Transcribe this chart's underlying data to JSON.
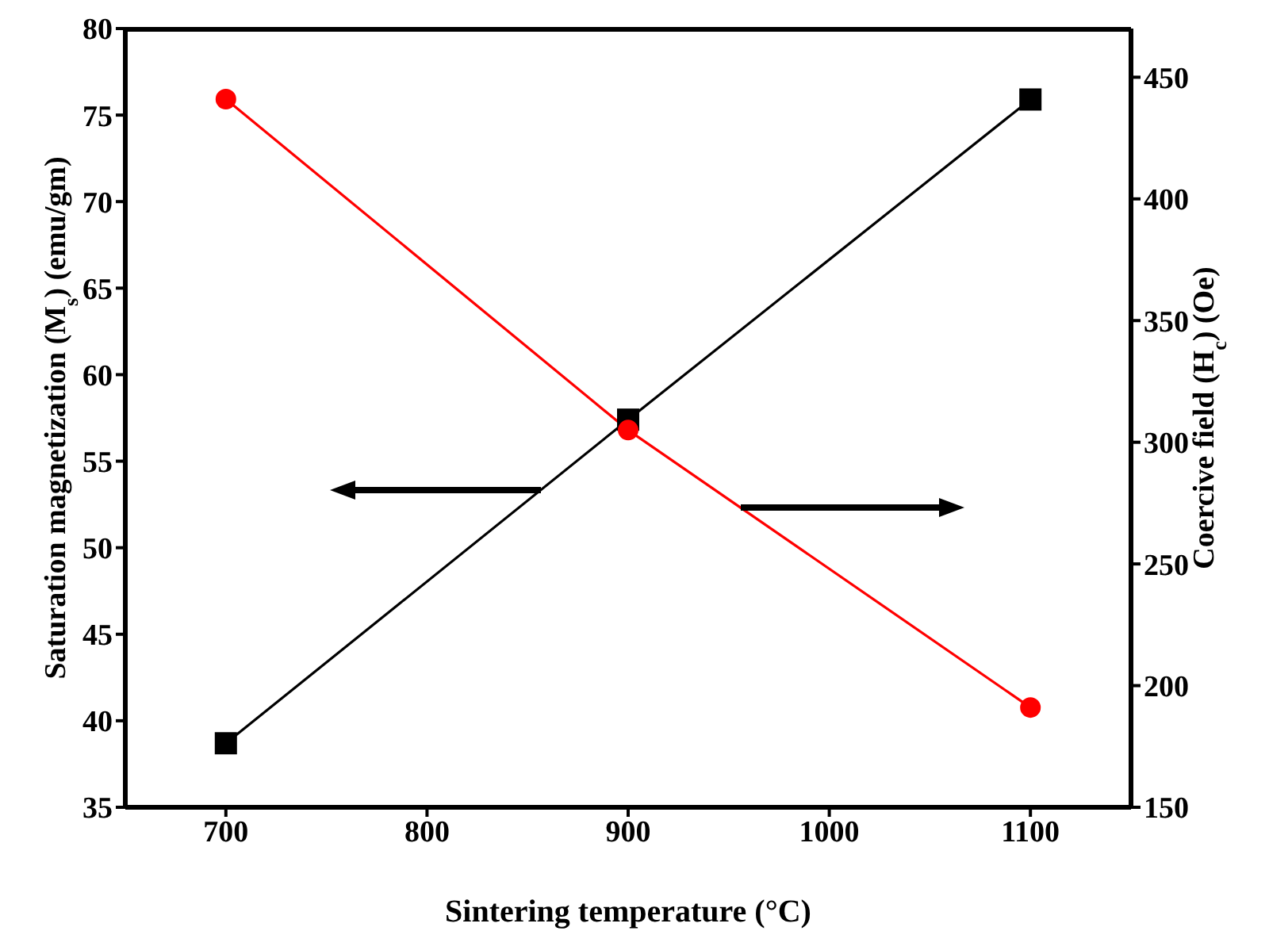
{
  "chart_data": {
    "type": "line",
    "xlabel": "Sintering temperature (°C)",
    "ylabel": "Saturation magnetization (M$_{s}$) (emu/gm)",
    "y2label": "Coercive field (H$_{c}$) (Oe)",
    "x": [
      700,
      900,
      1100
    ],
    "series": [
      {
        "color": "#000000",
        "marker": "square",
        "values": [
          38.7,
          57.4,
          75.9
        ]
      },
      {
        "color": "#ff0000",
        "marker": "circle",
        "axis": "y2",
        "values": [
          441,
          305,
          191
        ]
      }
    ],
    "xlim": [
      650,
      1150
    ],
    "xticks": [
      700,
      800,
      900,
      1000,
      1100
    ],
    "ylim": [
      35,
      80
    ],
    "yticks": [
      35,
      40,
      45,
      50,
      55,
      60,
      65,
      70,
      75,
      80
    ],
    "y2lim": [
      150,
      470
    ],
    "y2ticks": [
      150,
      200,
      250,
      300,
      350,
      400,
      450
    ],
    "grid": false
  }
}
